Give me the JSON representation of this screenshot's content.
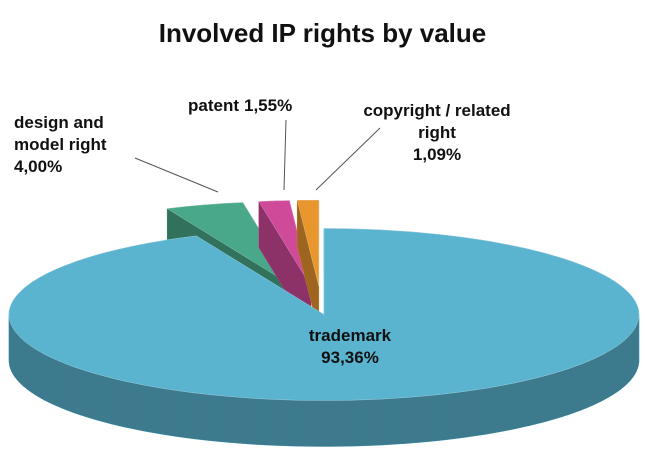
{
  "chart_data": {
    "type": "pie3d",
    "title": "Involved IP rights by value",
    "categories": [
      "trademark",
      "design and model right",
      "patent",
      "copyright / related right"
    ],
    "values": [
      93.36,
      4.0,
      1.55,
      1.09
    ],
    "value_labels": [
      "93,36%",
      "4,00%",
      "1,55%",
      "1,09%"
    ],
    "colors": [
      "#5ab4d0",
      "#4aa88a",
      "#d04a9a",
      "#e8962e"
    ]
  }
}
